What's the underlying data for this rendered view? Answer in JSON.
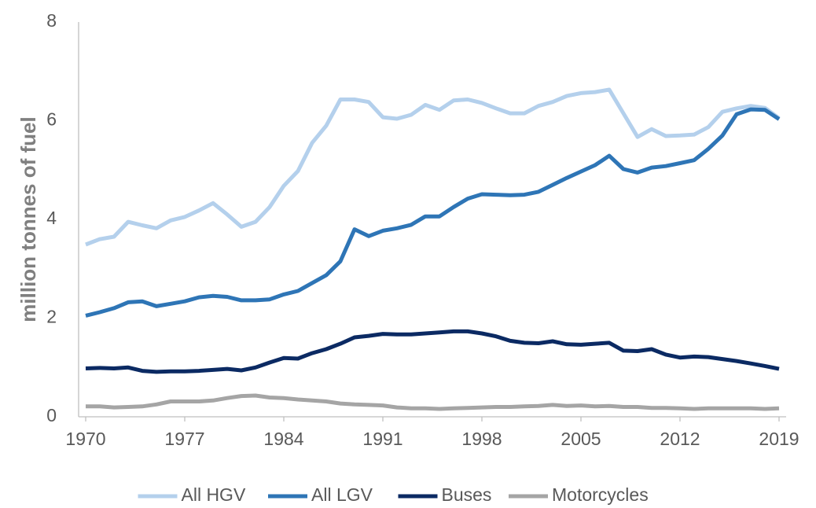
{
  "chart_data": {
    "type": "line",
    "y_label": "million tonnes of fuel",
    "x": [
      1970,
      1971,
      1972,
      1973,
      1974,
      1975,
      1976,
      1977,
      1978,
      1979,
      1980,
      1981,
      1982,
      1983,
      1984,
      1985,
      1986,
      1987,
      1988,
      1989,
      1990,
      1991,
      1992,
      1993,
      1994,
      1995,
      1996,
      1997,
      1998,
      1999,
      2000,
      2001,
      2002,
      2003,
      2004,
      2005,
      2006,
      2007,
      2008,
      2009,
      2010,
      2011,
      2012,
      2013,
      2014,
      2015,
      2016,
      2017,
      2018,
      2019
    ],
    "xlim": [
      1969.5,
      2019.5
    ],
    "xticks": [
      1970,
      1977,
      1984,
      1991,
      1998,
      2005,
      2012,
      2019
    ],
    "ylim": [
      0,
      8
    ],
    "yticks": [
      0,
      2,
      4,
      6,
      8
    ],
    "grid": false,
    "legend": "bottom",
    "series": [
      {
        "name": "All HGV",
        "color": "#b4d0ec",
        "values": [
          3.49,
          3.6,
          3.65,
          3.95,
          3.88,
          3.82,
          3.98,
          4.05,
          4.18,
          4.33,
          4.1,
          3.85,
          3.95,
          4.25,
          4.68,
          4.98,
          5.55,
          5.9,
          6.43,
          6.43,
          6.38,
          6.07,
          6.04,
          6.12,
          6.32,
          6.22,
          6.41,
          6.43,
          6.36,
          6.25,
          6.15,
          6.15,
          6.3,
          6.38,
          6.5,
          6.56,
          6.58,
          6.63,
          6.15,
          5.67,
          5.83,
          5.69,
          5.7,
          5.72,
          5.87,
          6.18,
          6.25,
          6.3,
          6.26,
          6.05
        ]
      },
      {
        "name": "All LGV",
        "color": "#2e75b6",
        "values": [
          2.05,
          2.12,
          2.2,
          2.32,
          2.34,
          2.24,
          2.29,
          2.34,
          2.42,
          2.45,
          2.43,
          2.36,
          2.36,
          2.38,
          2.48,
          2.55,
          2.71,
          2.87,
          3.15,
          3.8,
          3.66,
          3.77,
          3.82,
          3.89,
          4.06,
          4.06,
          4.25,
          4.42,
          4.51,
          4.5,
          4.49,
          4.5,
          4.56,
          4.7,
          4.84,
          4.97,
          5.1,
          5.29,
          5.02,
          4.95,
          5.05,
          5.08,
          5.14,
          5.2,
          5.43,
          5.7,
          6.13,
          6.23,
          6.22,
          6.03
        ]
      },
      {
        "name": "Buses",
        "color": "#0b2a63",
        "values": [
          0.98,
          0.99,
          0.98,
          1.0,
          0.93,
          0.91,
          0.92,
          0.92,
          0.93,
          0.95,
          0.97,
          0.94,
          1.0,
          1.1,
          1.19,
          1.18,
          1.29,
          1.37,
          1.48,
          1.61,
          1.64,
          1.68,
          1.67,
          1.67,
          1.69,
          1.71,
          1.73,
          1.73,
          1.69,
          1.63,
          1.54,
          1.5,
          1.49,
          1.53,
          1.47,
          1.46,
          1.48,
          1.5,
          1.34,
          1.33,
          1.37,
          1.26,
          1.2,
          1.22,
          1.21,
          1.17,
          1.13,
          1.08,
          1.03,
          0.97
        ]
      },
      {
        "name": "Motorcycles",
        "color": "#a5a5a5",
        "values": [
          0.21,
          0.21,
          0.19,
          0.2,
          0.21,
          0.25,
          0.31,
          0.31,
          0.31,
          0.33,
          0.38,
          0.42,
          0.43,
          0.39,
          0.38,
          0.35,
          0.33,
          0.31,
          0.27,
          0.25,
          0.24,
          0.23,
          0.19,
          0.17,
          0.17,
          0.16,
          0.17,
          0.18,
          0.19,
          0.2,
          0.2,
          0.21,
          0.22,
          0.24,
          0.22,
          0.23,
          0.21,
          0.22,
          0.2,
          0.2,
          0.18,
          0.18,
          0.17,
          0.16,
          0.17,
          0.17,
          0.17,
          0.17,
          0.16,
          0.17
        ]
      }
    ]
  }
}
